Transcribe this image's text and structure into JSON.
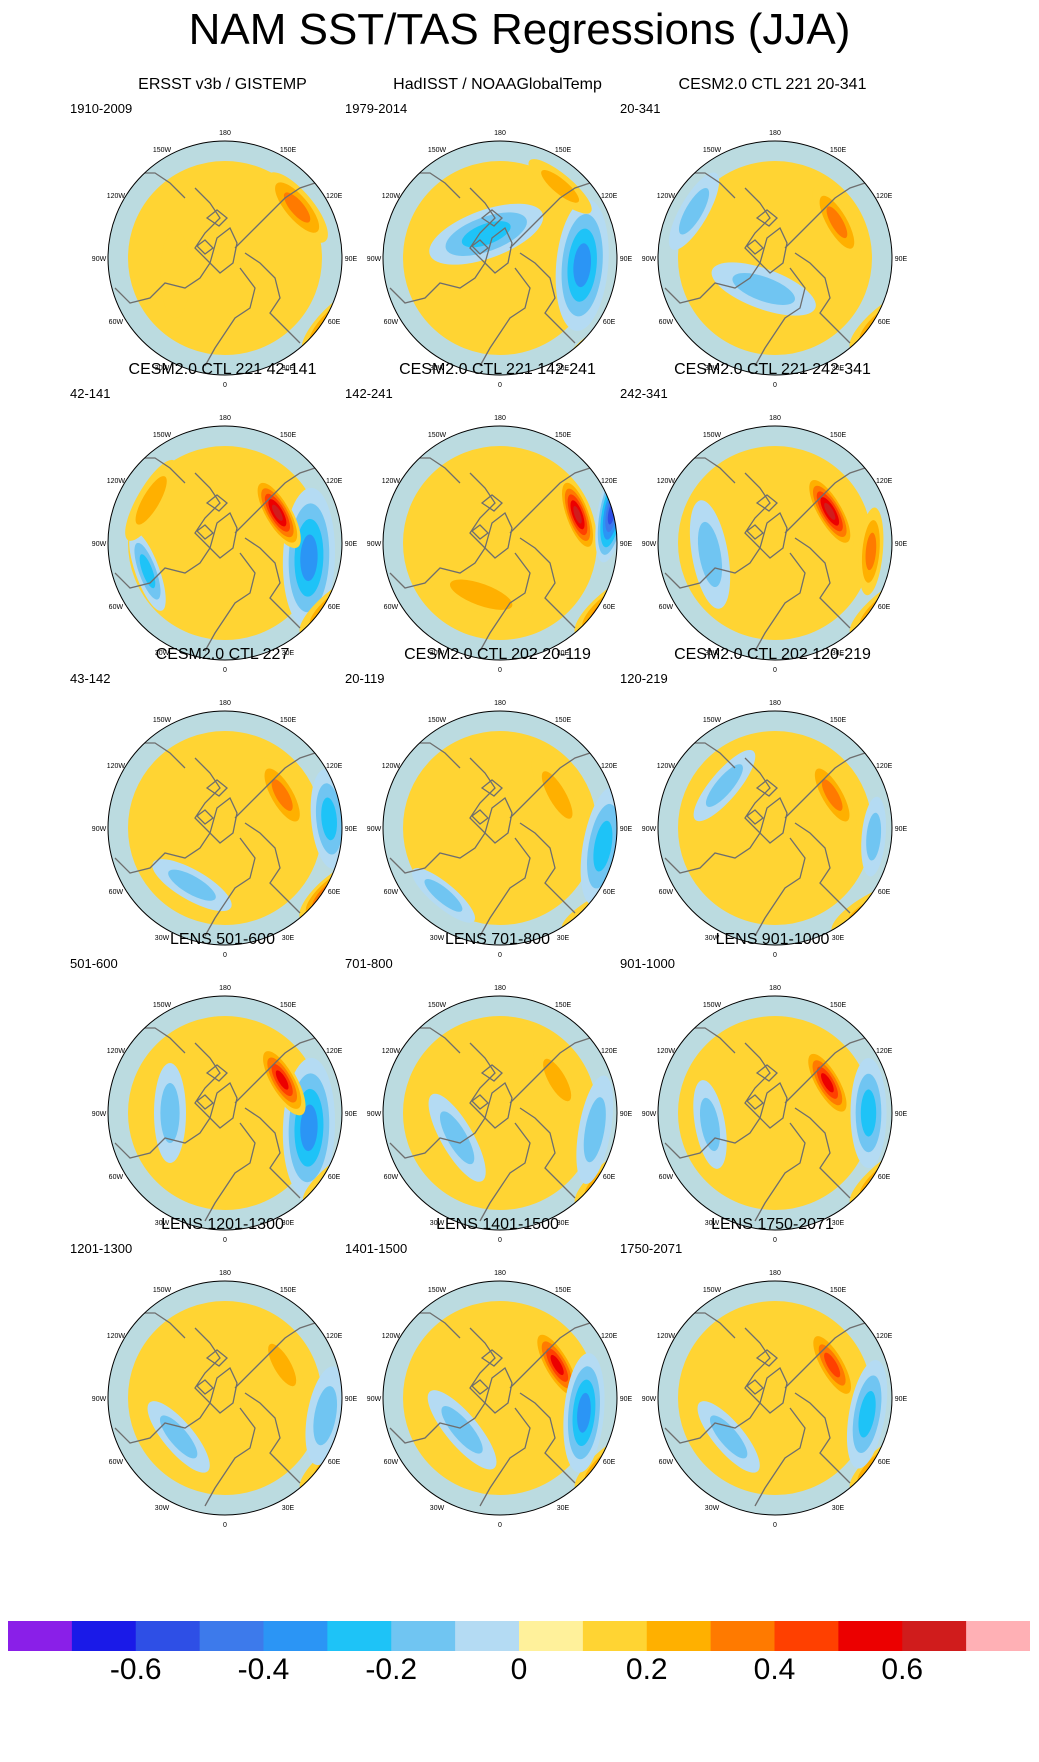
{
  "title": "NAM SST/TAS Regressions (JJA)",
  "longitude_labels": [
    "180",
    "150E",
    "120E",
    "90E",
    "60E",
    "30E",
    "0",
    "30W",
    "60W",
    "90W",
    "120W",
    "150W"
  ],
  "colorbar": {
    "colors": [
      "#8a1fe8",
      "#1a1ae8",
      "#2e4fe6",
      "#3d7aeb",
      "#2b95f5",
      "#1ec3f7",
      "#70c5f2",
      "#b4dbf3",
      "#fff19b",
      "#ffd433",
      "#ffb000",
      "#ff7a00",
      "#ff4000",
      "#ec0000",
      "#d01c1c",
      "#ffb0b5"
    ],
    "tick_labels": [
      "-0.6",
      "-0.4",
      "-0.2",
      "0",
      "0.2",
      "0.4",
      "0.6"
    ],
    "tick_values": [
      -0.6,
      -0.4,
      -0.2,
      0,
      0.2,
      0.4,
      0.6
    ],
    "levels": [
      -0.7,
      -0.6,
      -0.5,
      -0.4,
      -0.3,
      -0.2,
      -0.1,
      0,
      0.1,
      0.2,
      0.3,
      0.4,
      0.5,
      0.6,
      0.7
    ]
  },
  "panels": [
    {
      "title": "ERSST v3b / GISTEMP",
      "period": "1910-2009",
      "blobs": [
        [
          55,
          160,
          44,
          16,
          -5,
          3
        ],
        [
          120,
          230,
          44,
          15,
          15,
          4
        ],
        [
          252,
          95,
          44,
          15,
          18,
          1
        ],
        [
          155,
          250,
          40,
          13,
          20,
          -3
        ]
      ]
    },
    {
      "title": "HadISST / NOAAGlobalTemp",
      "period": "1979-2014",
      "blobs": [
        [
          95,
          150,
          66,
          26,
          0,
          -4
        ],
        [
          40,
          170,
          40,
          12,
          0,
          2
        ],
        [
          130,
          240,
          44,
          14,
          15,
          4
        ],
        [
          330,
          50,
          60,
          24,
          10,
          -3
        ]
      ]
    },
    {
      "title": "CESM2.0 CTL 221 20-341",
      "period": "20-341",
      "blobs": [
        [
          300,
          170,
          44,
          14,
          0,
          -2
        ],
        [
          120,
          230,
          44,
          15,
          20,
          3
        ],
        [
          60,
          130,
          42,
          14,
          0,
          3
        ],
        [
          140,
          250,
          40,
          13,
          10,
          -4
        ],
        [
          200,
          60,
          55,
          20,
          0,
          -2
        ]
      ]
    },
    {
      "title": "CESM2.0 CTL 221 42-141",
      "period": "42-141",
      "blobs": [
        [
          100,
          155,
          70,
          26,
          -8,
          -4
        ],
        [
          120,
          230,
          44,
          15,
          20,
          3
        ],
        [
          60,
          110,
          40,
          14,
          0,
          6
        ],
        [
          250,
          150,
          42,
          12,
          0,
          -3
        ],
        [
          300,
          155,
          46,
          14,
          0,
          2
        ]
      ]
    },
    {
      "title": "CESM2.0 CTL 221 142-241",
      "period": "142-241",
      "blobs": [
        [
          120,
          230,
          44,
          15,
          20,
          4
        ],
        [
          140,
          250,
          40,
          12,
          15,
          -3
        ],
        [
          70,
          150,
          40,
          13,
          0,
          6
        ],
        [
          75,
          210,
          50,
          14,
          25,
          -6
        ],
        [
          200,
          100,
          55,
          18,
          0,
          2
        ]
      ]
    },
    {
      "title": "CESM2.0 CTL 221 242-341",
      "period": "242-341",
      "blobs": [
        [
          95,
          175,
          44,
          12,
          0,
          3
        ],
        [
          120,
          230,
          44,
          14,
          20,
          3
        ],
        [
          140,
          250,
          40,
          12,
          15,
          -3
        ],
        [
          60,
          115,
          42,
          14,
          0,
          6
        ],
        [
          260,
          120,
          55,
          18,
          0,
          -2
        ]
      ]
    },
    {
      "title": "CESM2.0 CTL 227",
      "period": "43-142",
      "blobs": [
        [
          120,
          230,
          44,
          16,
          20,
          5
        ],
        [
          140,
          250,
          40,
          12,
          15,
          -3
        ],
        [
          60,
          120,
          42,
          15,
          0,
          3
        ],
        [
          85,
          190,
          50,
          18,
          0,
          -3
        ],
        [
          210,
          120,
          45,
          15,
          0,
          -2
        ]
      ]
    },
    {
      "title": "CESM2.0 CTL 202 20-119",
      "period": "20-119",
      "blobs": [
        [
          130,
          230,
          40,
          12,
          20,
          2
        ],
        [
          145,
          250,
          35,
          10,
          15,
          -2
        ],
        [
          60,
          120,
          45,
          14,
          0,
          2
        ],
        [
          100,
          190,
          60,
          20,
          0,
          -3
        ],
        [
          220,
          160,
          40,
          12,
          0,
          -2
        ]
      ]
    },
    {
      "title": "CESM2.0 CTL 202 120-219",
      "period": "120-219",
      "blobs": [
        [
          130,
          230,
          46,
          15,
          20,
          2
        ],
        [
          140,
          250,
          38,
          11,
          15,
          -3
        ],
        [
          60,
          120,
          42,
          14,
          0,
          3
        ],
        [
          95,
          180,
          40,
          12,
          0,
          -2
        ],
        [
          310,
          120,
          45,
          14,
          0,
          -2
        ]
      ]
    },
    {
      "title": "LENS 501-600",
      "period": "501-600",
      "blobs": [
        [
          100,
          155,
          70,
          26,
          -8,
          -4
        ],
        [
          60,
          120,
          40,
          14,
          0,
          5
        ],
        [
          120,
          230,
          40,
          12,
          20,
          2
        ],
        [
          150,
          245,
          35,
          10,
          10,
          -3
        ],
        [
          270,
          100,
          50,
          16,
          0,
          -2
        ]
      ]
    },
    {
      "title": "LENS 701-800",
      "period": "701-800",
      "blobs": [
        [
          120,
          230,
          44,
          14,
          20,
          3
        ],
        [
          140,
          250,
          38,
          12,
          15,
          -2
        ],
        [
          60,
          120,
          40,
          14,
          0,
          2
        ],
        [
          100,
          175,
          55,
          16,
          0,
          -2
        ],
        [
          240,
          90,
          50,
          16,
          0,
          -2
        ]
      ]
    },
    {
      "title": "LENS 901-1000",
      "period": "901-1000",
      "blobs": [
        [
          120,
          230,
          44,
          14,
          20,
          3
        ],
        [
          140,
          250,
          38,
          12,
          15,
          -2
        ],
        [
          60,
          110,
          40,
          14,
          0,
          5
        ],
        [
          90,
          170,
          55,
          18,
          0,
          -3
        ],
        [
          260,
          120,
          45,
          15,
          0,
          -2
        ]
      ]
    },
    {
      "title": "LENS 1201-1300",
      "period": "1201-1300",
      "blobs": [
        [
          120,
          230,
          44,
          14,
          20,
          2
        ],
        [
          140,
          250,
          38,
          12,
          15,
          -2
        ],
        [
          60,
          120,
          40,
          14,
          0,
          2
        ],
        [
          100,
          185,
          50,
          18,
          0,
          -2
        ],
        [
          230,
          110,
          45,
          15,
          0,
          -2
        ]
      ]
    },
    {
      "title": "LENS 1401-1500",
      "period": "1401-1500",
      "blobs": [
        [
          120,
          230,
          44,
          14,
          20,
          3
        ],
        [
          140,
          250,
          38,
          12,
          15,
          -2
        ],
        [
          60,
          120,
          42,
          14,
          0,
          5
        ],
        [
          100,
          155,
          60,
          20,
          -5,
          -4
        ],
        [
          230,
          90,
          50,
          16,
          0,
          -2
        ]
      ]
    },
    {
      "title": "LENS 1750-2071",
      "period": "1750-2071",
      "blobs": [
        [
          120,
          230,
          44,
          14,
          20,
          4
        ],
        [
          140,
          250,
          38,
          12,
          15,
          -3
        ],
        [
          60,
          120,
          42,
          14,
          0,
          4
        ],
        [
          100,
          170,
          55,
          18,
          0,
          -3
        ],
        [
          230,
          110,
          45,
          15,
          0,
          -2
        ]
      ]
    }
  ]
}
